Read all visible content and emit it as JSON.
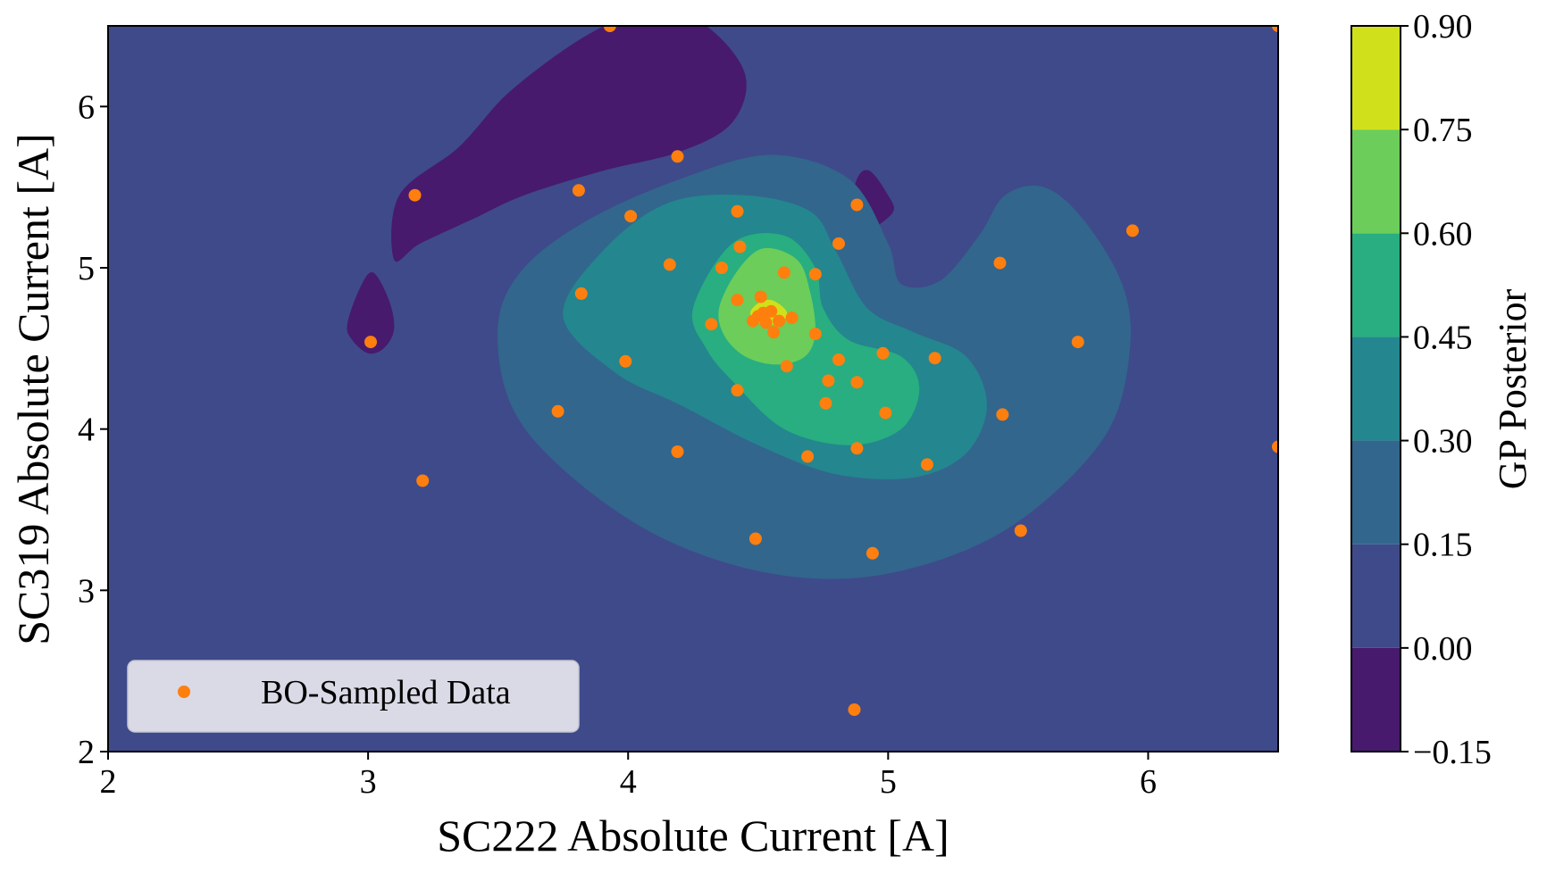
{
  "chart_data": {
    "type": "scatter",
    "title": "",
    "xlabel": "SC222 Absolute Current [A]",
    "ylabel": "SC319 Absolute Current [A]",
    "xlim": [
      2,
      6.5
    ],
    "ylim": [
      2,
      6.5
    ],
    "xticks": [
      "2",
      "3",
      "4",
      "5",
      "6"
    ],
    "yticks": [
      "2",
      "3",
      "4",
      "5",
      "6"
    ],
    "grid": false,
    "legend": {
      "placement": "lower-left",
      "entries": [
        "BO-Sampled Data"
      ]
    },
    "colorbar": {
      "label": "GP Posterior",
      "levels": [
        -0.15,
        0.0,
        0.15,
        0.3,
        0.45,
        0.6,
        0.75,
        0.9
      ],
      "tick_labels": [
        "−0.15",
        "0.00",
        "0.15",
        "0.30",
        "0.45",
        "0.60",
        "0.75",
        "0.90"
      ],
      "colors": [
        "#471a6e",
        "#3f4a8a",
        "#32668d",
        "#24868e",
        "#28ae80",
        "#6ccd5a",
        "#d0e11c"
      ]
    },
    "background_color": "#3f4a8a",
    "contours": [
      {
        "level_index": 0,
        "points": [
          [
            3.1,
            5.05
          ],
          [
            3.12,
            5.45
          ],
          [
            3.35,
            5.75
          ],
          [
            3.55,
            6.1
          ],
          [
            3.85,
            6.45
          ],
          [
            4.1,
            6.6
          ],
          [
            4.3,
            6.5
          ],
          [
            4.45,
            6.2
          ],
          [
            4.4,
            5.9
          ],
          [
            4.2,
            5.72
          ],
          [
            3.9,
            5.6
          ],
          [
            3.6,
            5.45
          ],
          [
            3.4,
            5.3
          ],
          [
            3.2,
            5.15
          ]
        ]
      },
      {
        "level_index": 0,
        "points": [
          [
            2.92,
            4.65
          ],
          [
            2.97,
            4.88
          ],
          [
            3.02,
            4.97
          ],
          [
            3.08,
            4.8
          ],
          [
            3.1,
            4.62
          ],
          [
            3.06,
            4.5
          ],
          [
            3.0,
            4.47
          ],
          [
            2.94,
            4.55
          ]
        ]
      },
      {
        "level_index": 0,
        "points": [
          [
            4.85,
            5.3
          ],
          [
            4.88,
            5.55
          ],
          [
            4.93,
            5.6
          ],
          [
            5.0,
            5.45
          ],
          [
            5.02,
            5.35
          ],
          [
            4.95,
            5.25
          ],
          [
            4.9,
            5.22
          ]
        ]
      },
      {
        "level_index": 2,
        "points": [
          [
            3.5,
            4.65
          ],
          [
            3.6,
            5.0
          ],
          [
            3.85,
            5.3
          ],
          [
            4.2,
            5.55
          ],
          [
            4.55,
            5.7
          ],
          [
            4.85,
            5.55
          ],
          [
            5.0,
            5.15
          ],
          [
            5.05,
            4.9
          ],
          [
            5.2,
            4.92
          ],
          [
            5.35,
            5.2
          ],
          [
            5.45,
            5.45
          ],
          [
            5.6,
            5.5
          ],
          [
            5.75,
            5.3
          ],
          [
            5.9,
            4.9
          ],
          [
            5.93,
            4.5
          ],
          [
            5.85,
            4.0
          ],
          [
            5.6,
            3.55
          ],
          [
            5.3,
            3.25
          ],
          [
            4.9,
            3.08
          ],
          [
            4.5,
            3.12
          ],
          [
            4.1,
            3.35
          ],
          [
            3.75,
            3.75
          ],
          [
            3.55,
            4.15
          ]
        ]
      },
      {
        "level_index": 3,
        "points": [
          [
            3.75,
            4.7
          ],
          [
            3.9,
            5.1
          ],
          [
            4.15,
            5.4
          ],
          [
            4.45,
            5.45
          ],
          [
            4.7,
            5.35
          ],
          [
            4.8,
            5.1
          ],
          [
            4.92,
            4.75
          ],
          [
            5.1,
            4.6
          ],
          [
            5.3,
            4.45
          ],
          [
            5.38,
            4.15
          ],
          [
            5.3,
            3.85
          ],
          [
            5.1,
            3.7
          ],
          [
            4.8,
            3.72
          ],
          [
            4.5,
            3.9
          ],
          [
            4.2,
            4.15
          ],
          [
            3.95,
            4.35
          ]
        ]
      },
      {
        "level_index": 4,
        "points": [
          [
            4.25,
            4.75
          ],
          [
            4.4,
            5.15
          ],
          [
            4.6,
            5.2
          ],
          [
            4.72,
            5.0
          ],
          [
            4.75,
            4.75
          ],
          [
            4.85,
            4.55
          ],
          [
            5.05,
            4.45
          ],
          [
            5.12,
            4.25
          ],
          [
            5.05,
            4.0
          ],
          [
            4.85,
            3.9
          ],
          [
            4.6,
            4.0
          ],
          [
            4.4,
            4.3
          ],
          [
            4.3,
            4.5
          ]
        ]
      },
      {
        "level_index": 5,
        "points": [
          [
            4.35,
            4.75
          ],
          [
            4.42,
            4.98
          ],
          [
            4.52,
            5.12
          ],
          [
            4.65,
            5.05
          ],
          [
            4.7,
            4.85
          ],
          [
            4.72,
            4.6
          ],
          [
            4.68,
            4.45
          ],
          [
            4.57,
            4.4
          ],
          [
            4.45,
            4.45
          ],
          [
            4.37,
            4.58
          ]
        ]
      },
      {
        "level_index": 6,
        "points": [
          [
            4.47,
            4.72
          ],
          [
            4.5,
            4.78
          ],
          [
            4.55,
            4.8
          ],
          [
            4.6,
            4.75
          ],
          [
            4.61,
            4.7
          ],
          [
            4.57,
            4.65
          ],
          [
            4.5,
            4.66
          ]
        ]
      }
    ],
    "series": [
      {
        "name": "BO-Sampled Data",
        "color": "#ff7f0e",
        "x": [
          3.93,
          6.5,
          4.19,
          3.18,
          3.81,
          4.01,
          4.42,
          4.88,
          4.81,
          5.94,
          4.16,
          4.36,
          4.6,
          4.72,
          4.43,
          3.82,
          4.42,
          4.51,
          4.52,
          4.55,
          4.58,
          4.63,
          4.5,
          4.53,
          4.56,
          4.48,
          4.32,
          4.72,
          5.43,
          3.01,
          5.73,
          3.99,
          4.98,
          4.81,
          5.18,
          4.61,
          4.77,
          4.88,
          4.42,
          4.76,
          4.99,
          5.44,
          3.73,
          4.19,
          4.88,
          4.69,
          5.15,
          3.21,
          5.51,
          4.49,
          4.94,
          4.87,
          6.5
        ],
        "y": [
          6.5,
          6.5,
          5.69,
          5.45,
          5.48,
          5.32,
          5.35,
          5.39,
          5.15,
          5.23,
          5.02,
          5.0,
          4.97,
          4.96,
          5.13,
          4.84,
          4.8,
          4.82,
          4.72,
          4.73,
          4.67,
          4.69,
          4.7,
          4.66,
          4.6,
          4.67,
          4.65,
          4.59,
          5.03,
          4.54,
          4.54,
          4.42,
          4.47,
          4.43,
          4.44,
          4.39,
          4.3,
          4.29,
          4.24,
          4.16,
          4.1,
          4.09,
          4.11,
          3.86,
          3.88,
          3.83,
          3.78,
          3.68,
          3.37,
          3.32,
          3.23,
          2.26,
          3.89
        ]
      }
    ]
  }
}
